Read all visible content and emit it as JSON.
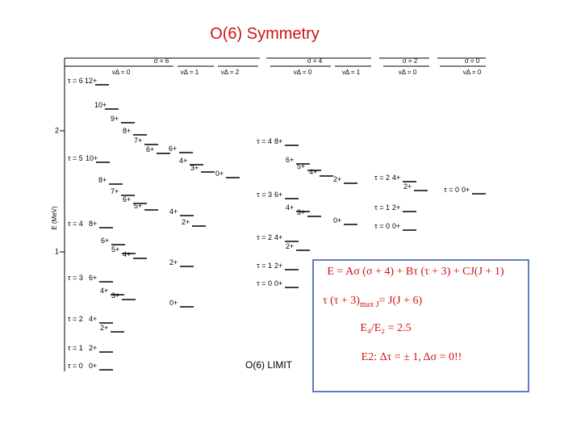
{
  "title": "O(6) Symmetry",
  "axis": {
    "label": "E (MeV)",
    "ticks": [
      "2",
      "1"
    ]
  },
  "sigma_headers": [
    "σ = 6",
    "σ = 4",
    "σ = 2",
    "σ = 0"
  ],
  "nu_headers": [
    "νΔ = 0",
    "νΔ = 1",
    "νΔ = 2",
    "νΔ = 0",
    "νΔ = 1",
    "νΔ = 0",
    "νΔ = 0"
  ],
  "levels": [
    {
      "tau": "τ = 6",
      "spin": "12+"
    },
    {
      "spin": "10+"
    },
    {
      "spin": "9+"
    },
    {
      "spin": "8+"
    },
    {
      "spin": "7+"
    },
    {
      "spin": "6+"
    },
    {
      "tau": "τ = 5",
      "spin": "10+"
    },
    {
      "spin": "8+"
    },
    {
      "spin": "7+"
    },
    {
      "spin": "6+"
    },
    {
      "spin": "5+"
    },
    {
      "tau": "τ = 4",
      "spin": "8+"
    },
    {
      "spin": "6+"
    },
    {
      "spin": "5+"
    },
    {
      "spin": "4+"
    },
    {
      "tau": "τ = 3",
      "spin": "6+"
    },
    {
      "spin": "4+"
    },
    {
      "spin": "3+"
    },
    {
      "tau": "τ = 2",
      "spin": "4+"
    },
    {
      "spin": "2+"
    },
    {
      "tau": "τ = 1",
      "spin": "2+"
    },
    {
      "tau": "τ = 0",
      "spin": "0+"
    },
    {
      "spin": "6+"
    },
    {
      "spin": "4+"
    },
    {
      "spin": "3+"
    },
    {
      "spin": "4+"
    },
    {
      "spin": "2+"
    },
    {
      "spin": "2+"
    },
    {
      "spin": "0+"
    },
    {
      "spin": "0+"
    },
    {
      "tau": "τ = 4",
      "spin": "8+"
    },
    {
      "spin": "6+"
    },
    {
      "spin": "5+"
    },
    {
      "spin": "4+"
    },
    {
      "tau": "τ = 3",
      "spin": "6+"
    },
    {
      "spin": "4+"
    },
    {
      "spin": "3+"
    },
    {
      "tau": "τ = 2",
      "spin": "4+"
    },
    {
      "spin": "2+"
    },
    {
      "tau": "τ = 1",
      "spin": "2+"
    },
    {
      "tau": "τ = 0",
      "spin": "0+"
    },
    {
      "spin": "2+"
    },
    {
      "spin": "0+"
    },
    {
      "tau": "τ = 2",
      "spin": "4+"
    },
    {
      "spin": "2+"
    },
    {
      "tau": "τ = 1",
      "spin": "2+"
    },
    {
      "tau": "τ = 0",
      "spin": "0+"
    },
    {
      "tau": "τ = 0",
      "spin": "0+"
    }
  ],
  "limit": "O(6) LIMIT",
  "box": {
    "energy": "E = Aσ (σ + 4) + Bτ (τ + 3) + CJ(J + 1)",
    "tau_lhs": "τ (τ + 3)",
    "tau_sub": "max J",
    "tau_rhs": "= J(J + 6)",
    "ratio": "E₄/E₂ = 2.5",
    "rule": "E2: Δτ = ± 1,  Δσ = 0!!"
  }
}
